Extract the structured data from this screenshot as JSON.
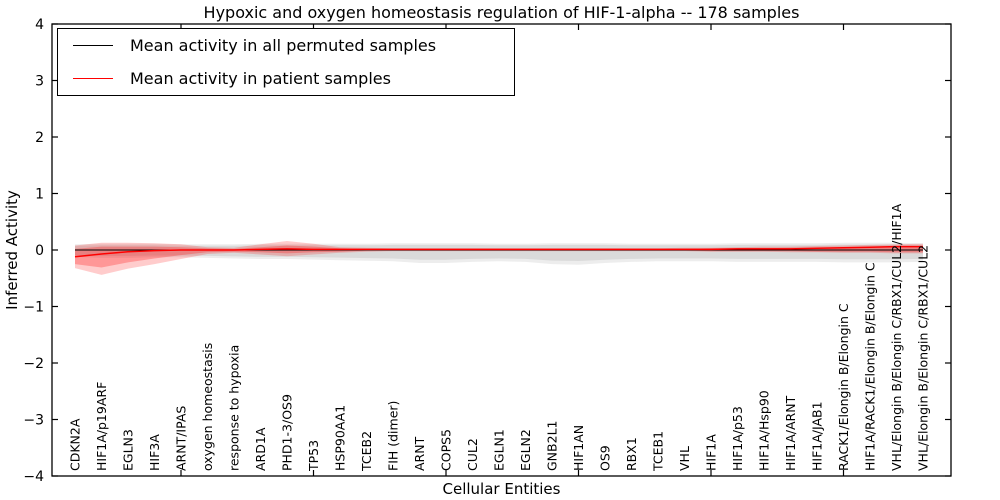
{
  "figure": {
    "title": "Hypoxic and oxygen homeostasis regulation of HIF-1-alpha -- 178 samples",
    "xlabel": "Cellular Entities",
    "ylabel": "Inferred Activity",
    "legend": [
      {
        "label": "Mean activity in all permuted samples",
        "color": "#000000"
      },
      {
        "label": "Mean activity in patient samples",
        "color": "#ff0000"
      }
    ]
  },
  "colors": {
    "permuted_line": "#000000",
    "patient_line": "#ff0000",
    "zero_dashed_line": "#000000",
    "permuted_band_fill": "rgba(0,0,0,0.07)",
    "permuted_band_inner_fill": "rgba(0,0,0,0.08)",
    "patient_band_fill": "rgba(255,0,0,0.20)",
    "patient_band_inner_fill": "rgba(255,0,0,0.26)",
    "axis": "#000000"
  },
  "chart_data": {
    "type": "line",
    "title": "Hypoxic and oxygen homeostasis regulation of HIF-1-alpha -- 178 samples",
    "xlabel": "Cellular Entities",
    "ylabel": "Inferred Activity",
    "ylim": [
      -4,
      4
    ],
    "yticks": [
      -4,
      -3,
      -2,
      -1,
      0,
      1,
      2,
      3,
      4
    ],
    "x_major_ticks": [
      5,
      10,
      15,
      20,
      25,
      30
    ],
    "grid": false,
    "legend_position": "upper left",
    "zero_reference_line": 0,
    "categories": [
      "CDKN2A",
      "HIF1A/p19ARF",
      "EGLN3",
      "HIF3A",
      "ARNT/IPAS",
      "oxygen homeostasis",
      "response to hypoxia",
      "ARD1A",
      "PHD1-3/OS9",
      "TP53",
      "HSP90AA1",
      "TCEB2",
      "FIH (dimer)",
      "ARNT",
      "COPS5",
      "CUL2",
      "EGLN1",
      "EGLN2",
      "GNB2L1",
      "HIF1AN",
      "OS9",
      "RBX1",
      "TCEB1",
      "VHL",
      "HIF1A",
      "HIF1A/p53",
      "HIF1A/Hsp90",
      "HIF1A/ARNT",
      "HIF1A/JAB1",
      "RACK1/Elongin B/Elongin C",
      "HIF1A/RACK1/Elongin B/Elongin C",
      "VHL/Elongin B/Elongin C/RBX1/CUL2/HIF1A",
      "VHL/Elongin B/Elongin C/RBX1/CUL2"
    ],
    "series": [
      {
        "name": "Mean activity in all permuted samples",
        "color": "#000000",
        "values": [
          0,
          0,
          0,
          0,
          0,
          0,
          0,
          0,
          0,
          0,
          0,
          0,
          0,
          0,
          0,
          0,
          0,
          0,
          0,
          0,
          0,
          0,
          0,
          0,
          0,
          0,
          0,
          0,
          0,
          0,
          0,
          0,
          0
        ],
        "band_hi": [
          0.1,
          0.11,
          0.11,
          0.11,
          0.1,
          0.1,
          0.1,
          0.11,
          0.11,
          0.11,
          0.11,
          0.11,
          0.12,
          0.12,
          0.12,
          0.12,
          0.11,
          0.11,
          0.12,
          0.12,
          0.12,
          0.11,
          0.11,
          0.11,
          0.11,
          0.12,
          0.12,
          0.12,
          0.12,
          0.13,
          0.13,
          0.13,
          0.12
        ],
        "band_lo": [
          -0.12,
          -0.14,
          -0.14,
          -0.13,
          -0.13,
          -0.14,
          -0.15,
          -0.16,
          -0.16,
          -0.17,
          -0.18,
          -0.19,
          -0.2,
          -0.23,
          -0.23,
          -0.21,
          -0.2,
          -0.21,
          -0.25,
          -0.26,
          -0.23,
          -0.21,
          -0.2,
          -0.2,
          -0.2,
          -0.21,
          -0.21,
          -0.21,
          -0.21,
          -0.22,
          -0.22,
          -0.22,
          -0.21
        ]
      },
      {
        "name": "Mean activity in patient samples",
        "color": "#ff0000",
        "values": [
          -0.12,
          -0.07,
          -0.03,
          -0.01,
          0.0,
          0.0,
          0.0,
          0.01,
          0.02,
          0.01,
          0.01,
          0.01,
          0.01,
          0.01,
          0.01,
          0.01,
          0.01,
          0.01,
          0.01,
          0.01,
          0.01,
          0.01,
          0.01,
          0.01,
          0.01,
          0.02,
          0.02,
          0.02,
          0.03,
          0.04,
          0.05,
          0.06,
          0.06
        ],
        "band_hi": [
          0.08,
          0.13,
          0.13,
          0.12,
          0.1,
          0.05,
          0.04,
          0.1,
          0.16,
          0.11,
          0.05,
          0.04,
          0.03,
          0.03,
          0.03,
          0.03,
          0.03,
          0.03,
          0.03,
          0.03,
          0.03,
          0.03,
          0.03,
          0.04,
          0.04,
          0.05,
          0.06,
          0.06,
          0.07,
          0.08,
          0.09,
          0.1,
          0.11
        ],
        "band_lo": [
          -0.32,
          -0.44,
          -0.33,
          -0.25,
          -0.16,
          -0.07,
          -0.05,
          -0.08,
          -0.11,
          -0.08,
          -0.05,
          -0.03,
          -0.02,
          -0.02,
          -0.02,
          -0.02,
          -0.02,
          -0.02,
          -0.02,
          -0.02,
          -0.02,
          -0.02,
          -0.02,
          -0.02,
          -0.03,
          -0.03,
          -0.03,
          -0.04,
          -0.04,
          -0.05,
          -0.05,
          -0.06,
          -0.06
        ],
        "band_inner_hi": [
          0.02,
          0.06,
          0.06,
          0.06,
          0.05,
          0.03,
          0.02,
          0.05,
          0.08,
          0.06,
          0.03,
          0.02,
          0.02,
          0.02,
          0.02,
          0.02,
          0.02,
          0.02,
          0.02,
          0.02,
          0.02,
          0.02,
          0.02,
          0.02,
          0.03,
          0.03,
          0.03,
          0.04,
          0.04,
          0.05,
          0.05,
          0.06,
          0.07
        ],
        "band_inner_lo": [
          -0.25,
          -0.31,
          -0.22,
          -0.15,
          -0.09,
          -0.04,
          -0.03,
          -0.04,
          -0.06,
          -0.04,
          -0.03,
          -0.01,
          -0.01,
          -0.01,
          -0.01,
          -0.01,
          -0.01,
          -0.01,
          -0.01,
          -0.01,
          -0.01,
          -0.01,
          -0.01,
          -0.01,
          -0.02,
          -0.02,
          -0.02,
          -0.02,
          -0.03,
          -0.03,
          -0.03,
          -0.04,
          -0.04
        ]
      }
    ]
  }
}
